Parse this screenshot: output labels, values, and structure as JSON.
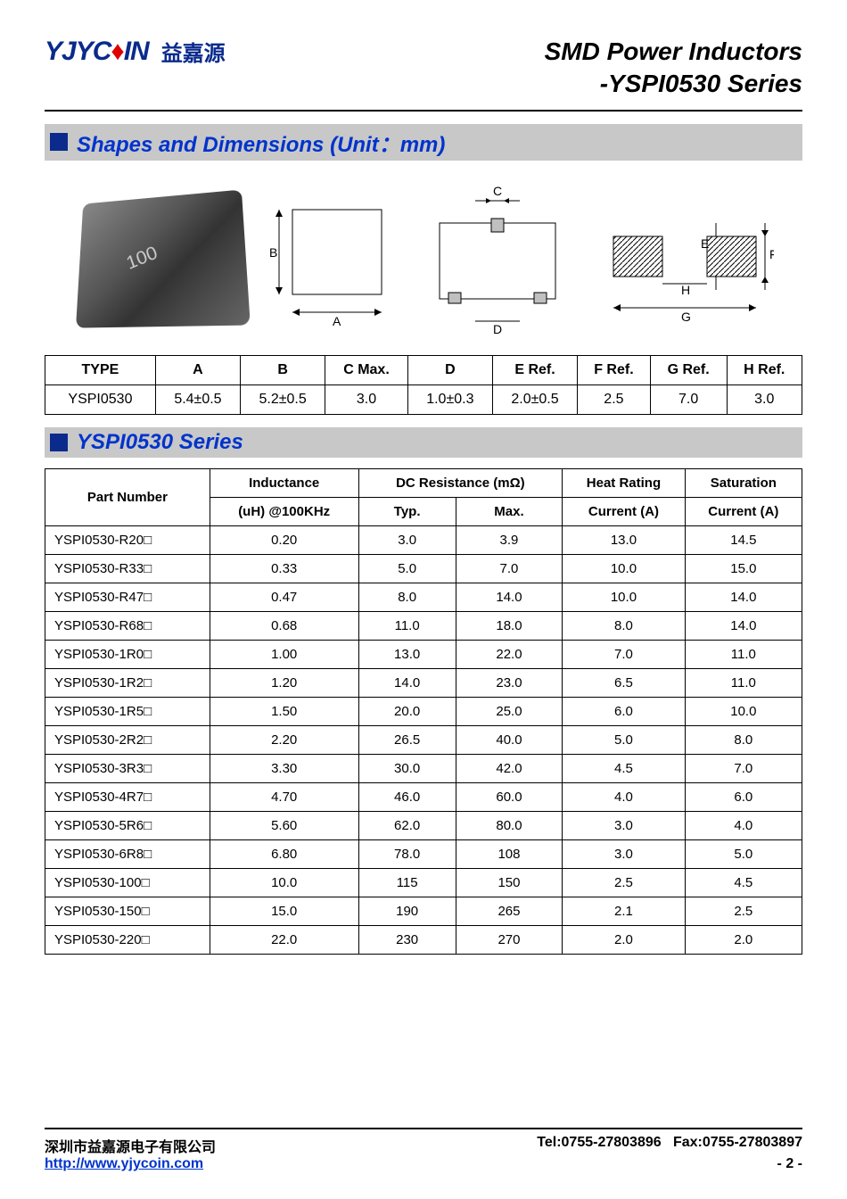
{
  "header": {
    "logo_en": "YJYC",
    "logo_red": "♦",
    "logo_en2": "IN",
    "logo_cn": "益嘉源",
    "title_line1": "SMD Power Inductors",
    "title_line2": "-YSPI0530 Series"
  },
  "section1": {
    "title": "Shapes and Dimensions (Unit：mm)",
    "diagram_labels": {
      "A": "A",
      "B": "B",
      "C": "C",
      "D": "D",
      "E": "E",
      "F": "F",
      "G": "G",
      "H": "H"
    }
  },
  "dim_table": {
    "columns": [
      "TYPE",
      "A",
      "B",
      "C Max.",
      "D",
      "E Ref.",
      "F Ref.",
      "G Ref.",
      "H Ref."
    ],
    "row": [
      "YSPI0530",
      "5.4±0.5",
      "5.2±0.5",
      "3.0",
      "1.0±0.3",
      "2.0±0.5",
      "2.5",
      "7.0",
      "3.0"
    ]
  },
  "section2": {
    "title": "YSPI0530 Series"
  },
  "spec_table": {
    "header_row1": [
      "Part Number",
      "Inductance",
      "DC Resistance (mΩ)",
      "Heat Rating",
      "Saturation"
    ],
    "header_row2": [
      "(uH) @100KHz",
      "Typ.",
      "Max.",
      "Current (A)",
      "Current (A)"
    ],
    "rows": [
      [
        "YSPI0530-R20□",
        "0.20",
        "3.0",
        "3.9",
        "13.0",
        "14.5"
      ],
      [
        "YSPI0530-R33□",
        "0.33",
        "5.0",
        "7.0",
        "10.0",
        "15.0"
      ],
      [
        "YSPI0530-R47□",
        "0.47",
        "8.0",
        "14.0",
        "10.0",
        "14.0"
      ],
      [
        "YSPI0530-R68□",
        "0.68",
        "11.0",
        "18.0",
        "8.0",
        "14.0"
      ],
      [
        "YSPI0530-1R0□",
        "1.00",
        "13.0",
        "22.0",
        "7.0",
        "11.0"
      ],
      [
        "YSPI0530-1R2□",
        "1.20",
        "14.0",
        "23.0",
        "6.5",
        "11.0"
      ],
      [
        "YSPI0530-1R5□",
        "1.50",
        "20.0",
        "25.0",
        "6.0",
        "10.0"
      ],
      [
        "YSPI0530-2R2□",
        "2.20",
        "26.5",
        "40.0",
        "5.0",
        "8.0"
      ],
      [
        "YSPI0530-3R3□",
        "3.30",
        "30.0",
        "42.0",
        "4.5",
        "7.0"
      ],
      [
        "YSPI0530-4R7□",
        "4.70",
        "46.0",
        "60.0",
        "4.0",
        "6.0"
      ],
      [
        "YSPI0530-5R6□",
        "5.60",
        "62.0",
        "80.0",
        "3.0",
        "4.0"
      ],
      [
        "YSPI0530-6R8□",
        "6.80",
        "78.0",
        "108",
        "3.0",
        "5.0"
      ],
      [
        "YSPI0530-100□",
        "10.0",
        "115",
        "150",
        "2.5",
        "4.5"
      ],
      [
        "YSPI0530-150□",
        "15.0",
        "190",
        "265",
        "2.1",
        "2.5"
      ],
      [
        "YSPI0530-220□",
        "22.0",
        "230",
        "270",
        "2.0",
        "2.0"
      ]
    ]
  },
  "footer": {
    "company": "深圳市益嘉源电子有限公司",
    "tel": "Tel:0755-27803896",
    "fax": "Fax:0755-27803897",
    "url": "http://www.yjycoin.com",
    "page": "- 2 -"
  },
  "colors": {
    "brand_blue": "#0a2a8c",
    "link_blue": "#0033cc",
    "section_bg": "#c8c8c8",
    "border": "#000000"
  }
}
